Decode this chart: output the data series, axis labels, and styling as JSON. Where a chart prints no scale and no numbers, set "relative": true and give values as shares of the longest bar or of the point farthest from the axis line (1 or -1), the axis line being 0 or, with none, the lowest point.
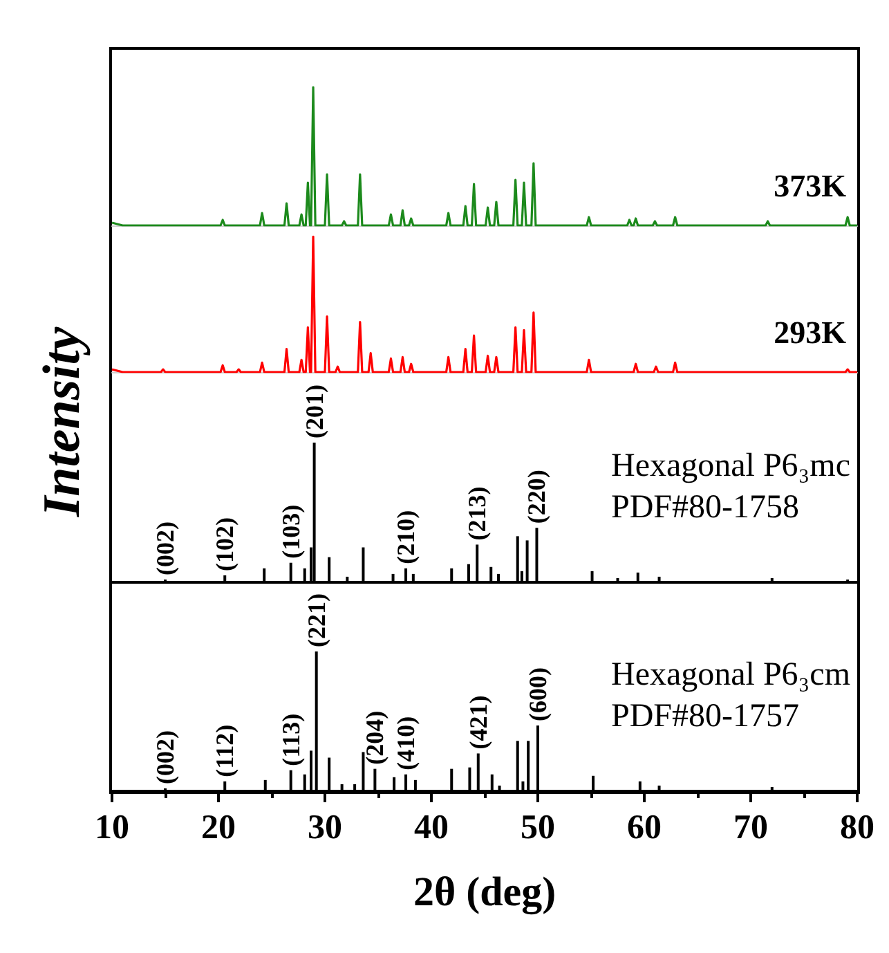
{
  "chart_data": [
    {
      "type": "line",
      "relative": true,
      "xlim": [
        10,
        80
      ],
      "tick_labels": false,
      "ylabel": "Intensity",
      "annotations": [
        "373K"
      ],
      "color": "#1c8a1c",
      "values": [
        0.02,
        0,
        0,
        0.04,
        0,
        0,
        0.09,
        0,
        0,
        0.16,
        0,
        0,
        0.08,
        0,
        0,
        0.31,
        0,
        0,
        1,
        0,
        0,
        0.37,
        0,
        0,
        0.03,
        0,
        0,
        0.37,
        0,
        0,
        0.08,
        0,
        0,
        0.11,
        0,
        0,
        0.05,
        0,
        0,
        0.09,
        0,
        0,
        0.14,
        0,
        0,
        0.3,
        0,
        0,
        0.13,
        0,
        0,
        0.17,
        0,
        0,
        0.33,
        0,
        0,
        0.31,
        0,
        0,
        0.45,
        0,
        0,
        0.06,
        0,
        0,
        0.04,
        0,
        0,
        0.05,
        0,
        0,
        0.03,
        0,
        0,
        0.06,
        0,
        0,
        0.03,
        0,
        0,
        0.06,
        0,
        0
      ],
      "x": [
        10,
        11,
        20.2,
        20.4,
        20.6,
        23.9,
        24.1,
        24.3,
        26.2,
        26.4,
        26.6,
        27.6,
        27.8,
        28.0,
        28.2,
        28.4,
        28.6,
        28.7,
        28.9,
        29.1,
        30.0,
        30.2,
        30.4,
        31.6,
        31.8,
        32.0,
        33.1,
        33.3,
        33.5,
        36.0,
        36.2,
        36.4,
        37.1,
        37.3,
        37.5,
        37.9,
        38.1,
        38.3,
        41.4,
        41.6,
        41.8,
        43.0,
        43.2,
        43.4,
        43.8,
        44.0,
        44.2,
        45.1,
        45.3,
        45.5,
        45.9,
        46.1,
        46.3,
        47.7,
        47.9,
        48.1,
        48.5,
        48.7,
        48.9,
        49.4,
        49.6,
        49.8,
        54.6,
        54.8,
        55.0,
        58.4,
        58.6,
        58.8,
        59.0,
        59.2,
        59.4,
        60.8,
        61.0,
        61.2,
        62.7,
        62.9,
        63.1,
        71.4,
        71.6,
        71.8,
        78.9,
        79.1,
        79.3,
        80
      ]
    },
    {
      "type": "line",
      "relative": true,
      "xlim": [
        10,
        80
      ],
      "tick_labels": false,
      "annotations": [
        "293K"
      ],
      "color": "#ff0000",
      "values": [
        0.02,
        0,
        0,
        0.02,
        0,
        0,
        0.05,
        0,
        0,
        0.02,
        0,
        0,
        0.07,
        0,
        0,
        0.17,
        0,
        0,
        0.09,
        0,
        0,
        0.33,
        0,
        0,
        1,
        0,
        0,
        0.41,
        0,
        0,
        0.04,
        0,
        0,
        0.37,
        0,
        0,
        0.14,
        0,
        0,
        0.1,
        0,
        0,
        0.11,
        0,
        0,
        0.06,
        0,
        0,
        0.11,
        0,
        0,
        0.17,
        0,
        0,
        0.27,
        0,
        0,
        0.12,
        0,
        0,
        0.11,
        0,
        0,
        0.33,
        0,
        0,
        0.31,
        0,
        0,
        0.44,
        0,
        0,
        0.09,
        0,
        0,
        0.06,
        0,
        0,
        0.04,
        0,
        0,
        0.07,
        0,
        0,
        0.02,
        0,
        0
      ],
      "x": [
        10,
        11,
        14.6,
        14.8,
        15.0,
        20.2,
        20.4,
        20.6,
        21.7,
        21.9,
        22.1,
        23.9,
        24.1,
        24.3,
        26.2,
        26.4,
        26.6,
        27.6,
        27.8,
        28.0,
        28.2,
        28.4,
        28.6,
        28.7,
        28.9,
        29.1,
        30.0,
        30.2,
        30.4,
        31.0,
        31.2,
        31.4,
        33.1,
        33.3,
        33.5,
        34.1,
        34.3,
        34.5,
        36.0,
        36.2,
        36.4,
        37.1,
        37.3,
        37.5,
        37.9,
        38.1,
        38.3,
        41.4,
        41.6,
        41.8,
        43.0,
        43.2,
        43.4,
        43.8,
        44.0,
        44.2,
        45.1,
        45.3,
        45.5,
        45.9,
        46.1,
        46.3,
        47.7,
        47.9,
        48.1,
        48.5,
        48.7,
        48.9,
        49.4,
        49.6,
        49.8,
        54.6,
        54.8,
        55.0,
        59.0,
        59.2,
        59.4,
        60.9,
        61.1,
        61.3,
        62.7,
        62.9,
        63.1,
        78.9,
        79.1,
        79.3,
        80
      ]
    },
    {
      "type": "bar",
      "relative": true,
      "xlim": [
        10,
        80
      ],
      "tick_labels": false,
      "color": "#000000",
      "x": [
        15.0,
        20.6,
        24.3,
        26.8,
        28.1,
        28.7,
        29.0,
        30.4,
        32.1,
        33.6,
        36.4,
        37.6,
        38.3,
        41.9,
        43.5,
        44.3,
        45.6,
        46.3,
        48.1,
        48.5,
        49.0,
        49.9,
        55.1,
        57.5,
        59.4,
        61.4,
        72.0,
        79.1
      ],
      "values": [
        0.02,
        0.05,
        0.1,
        0.14,
        0.1,
        0.25,
        1,
        0.18,
        0.04,
        0.25,
        0.06,
        0.1,
        0.06,
        0.1,
        0.13,
        0.27,
        0.11,
        0.06,
        0.33,
        0.08,
        0.3,
        0.39,
        0.08,
        0.03,
        0.07,
        0.04,
        0.03,
        0.02
      ],
      "annotations": [
        "Hexagonal P6₃mc",
        "PDF#80-1758",
        {
          "text": "(002)",
          "x": 15.0,
          "y": 0.02
        },
        {
          "text": "(102)",
          "x": 20.6,
          "y": 0.05
        },
        {
          "text": "(103)",
          "x": 26.8,
          "y": 0.14
        },
        {
          "text": "(201)",
          "x": 29.0,
          "y": 1
        },
        {
          "text": "(210)",
          "x": 37.6,
          "y": 0.1
        },
        {
          "text": "(213)",
          "x": 44.3,
          "y": 0.27
        },
        {
          "text": "(220)",
          "x": 49.9,
          "y": 0.39
        }
      ]
    },
    {
      "type": "bar",
      "relative": true,
      "xlim": [
        10,
        80
      ],
      "xticks": [
        10,
        20,
        30,
        40,
        50,
        60,
        70,
        80
      ],
      "tick_labels": "x",
      "xlabel": "2θ (deg)",
      "color": "#000000",
      "x": [
        15.0,
        20.6,
        24.4,
        26.8,
        28.1,
        28.7,
        29.2,
        30.4,
        31.6,
        32.8,
        33.6,
        34.7,
        36.5,
        37.6,
        38.5,
        41.9,
        43.6,
        44.4,
        45.7,
        46.4,
        48.1,
        48.6,
        49.1,
        50.0,
        55.2,
        59.6,
        61.4,
        72.0
      ],
      "values": [
        0.02,
        0.07,
        0.08,
        0.15,
        0.12,
        0.29,
        1,
        0.24,
        0.05,
        0.05,
        0.28,
        0.16,
        0.1,
        0.12,
        0.08,
        0.16,
        0.17,
        0.27,
        0.12,
        0.04,
        0.36,
        0.07,
        0.36,
        0.47,
        0.11,
        0.07,
        0.04,
        0.03
      ],
      "annotations": [
        "Hexagonal P6₃cm",
        "PDF#80-1757",
        {
          "text": "(002)",
          "x": 15.0,
          "y": 0.02
        },
        {
          "text": "(112)",
          "x": 20.6,
          "y": 0.07
        },
        {
          "text": "(113)",
          "x": 26.8,
          "y": 0.15
        },
        {
          "text": "(221)",
          "x": 29.2,
          "y": 1
        },
        {
          "text": "(204)",
          "x": 34.7,
          "y": 0.16
        },
        {
          "text": "(410)",
          "x": 37.6,
          "y": 0.12
        },
        {
          "text": "(421)",
          "x": 44.4,
          "y": 0.27
        },
        {
          "text": "(600)",
          "x": 50.0,
          "y": 0.47
        }
      ]
    }
  ]
}
